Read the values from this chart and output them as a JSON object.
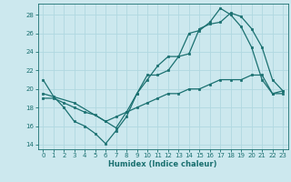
{
  "xlabel": "Humidex (Indice chaleur)",
  "xlim": [
    -0.5,
    23.5
  ],
  "ylim": [
    13.5,
    29.2
  ],
  "yticks": [
    14,
    16,
    18,
    20,
    22,
    24,
    26,
    28
  ],
  "xticks": [
    0,
    1,
    2,
    3,
    4,
    5,
    6,
    7,
    8,
    9,
    10,
    11,
    12,
    13,
    14,
    15,
    16,
    17,
    18,
    19,
    20,
    21,
    22,
    23
  ],
  "bg_color": "#cce8ee",
  "line_color": "#1a7070",
  "grid_color": "#b0d8e0",
  "line1_x": [
    0,
    1,
    2,
    3,
    4,
    5,
    6,
    7,
    8,
    9,
    10,
    11,
    12,
    13,
    14,
    15,
    16,
    17,
    18,
    19,
    20,
    21,
    22,
    23
  ],
  "line1_y": [
    21.0,
    19.2,
    18.0,
    16.5,
    16.0,
    15.2,
    14.1,
    15.5,
    17.0,
    19.5,
    21.5,
    21.5,
    22.0,
    23.5,
    26.0,
    26.3,
    27.2,
    28.7,
    28.0,
    26.7,
    24.5,
    21.0,
    19.5,
    19.5
  ],
  "line2_x": [
    0,
    3,
    6,
    7,
    8,
    9,
    10,
    11,
    12,
    13,
    14,
    15,
    16,
    17,
    18,
    19,
    20,
    21,
    22,
    23
  ],
  "line2_y": [
    19.5,
    18.5,
    16.5,
    15.8,
    17.5,
    19.5,
    21.0,
    22.5,
    23.5,
    23.5,
    23.8,
    26.5,
    27.0,
    27.2,
    28.2,
    27.8,
    26.5,
    24.5,
    21.0,
    19.8
  ],
  "line3_x": [
    0,
    1,
    2,
    3,
    4,
    5,
    6,
    7,
    8,
    9,
    10,
    11,
    12,
    13,
    14,
    15,
    16,
    17,
    18,
    19,
    20,
    21,
    22,
    23
  ],
  "line3_y": [
    19.0,
    19.0,
    18.5,
    18.0,
    17.5,
    17.2,
    16.5,
    17.0,
    17.5,
    18.0,
    18.5,
    19.0,
    19.5,
    19.5,
    20.0,
    20.0,
    20.5,
    21.0,
    21.0,
    21.0,
    21.5,
    21.5,
    19.5,
    19.8
  ]
}
